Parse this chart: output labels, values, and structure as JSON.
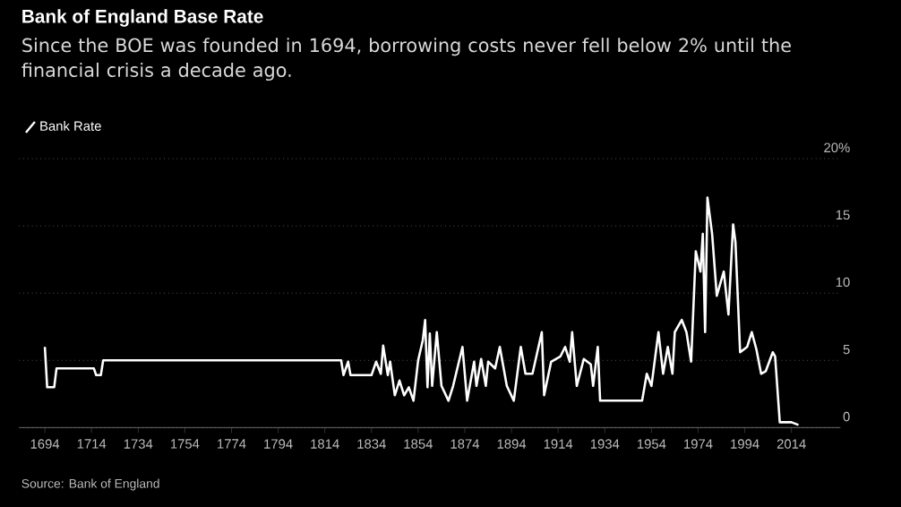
{
  "chart_data": {
    "type": "line",
    "title": "Bank of England Base Rate",
    "subtitle": "Since the BOE was founded in 1694, borrowing costs never fell below 2% until the financial crisis a decade ago.",
    "x": [
      1694,
      1695,
      1698,
      1699,
      1715,
      1716,
      1718,
      1719,
      1821,
      1822,
      1824,
      1825,
      1834,
      1836,
      1838,
      1839,
      1841,
      1842,
      1844,
      1846,
      1848,
      1850,
      1852,
      1854,
      1856,
      1857,
      1858,
      1859,
      1860,
      1862,
      1864,
      1867,
      1869,
      1873,
      1875,
      1878,
      1879,
      1881,
      1883,
      1884,
      1887,
      1889,
      1892,
      1895,
      1898,
      1900,
      1903,
      1907,
      1908,
      1911,
      1915,
      1917,
      1919,
      1920,
      1922,
      1925,
      1928,
      1929,
      1931,
      1932,
      1950,
      1952,
      1954,
      1957,
      1959,
      1961,
      1963,
      1964,
      1967,
      1969,
      1971,
      1973,
      1975,
      1976,
      1977,
      1978,
      1980,
      1982,
      1985,
      1987,
      1989,
      1990,
      1992,
      1995,
      1997,
      1999,
      2001,
      2003,
      2006,
      2007,
      2009,
      2014,
      2017
    ],
    "series": [
      {
        "name": "Bank Rate",
        "color": "#ffffff",
        "values": [
          6.0,
          3.0,
          3.0,
          4.4,
          4.4,
          3.9,
          3.9,
          5.0,
          5.0,
          3.9,
          4.9,
          3.9,
          3.9,
          4.9,
          4.0,
          6.1,
          3.9,
          4.9,
          2.4,
          3.5,
          2.4,
          3.0,
          2.0,
          5.0,
          6.5,
          8.0,
          3.0,
          7.0,
          3.1,
          7.1,
          3.1,
          2.0,
          3.1,
          6.0,
          2.0,
          4.9,
          3.1,
          5.1,
          3.1,
          4.9,
          4.4,
          6.0,
          3.1,
          2.0,
          6.0,
          4.0,
          4.0,
          7.1,
          2.4,
          4.9,
          5.3,
          6.0,
          4.9,
          7.1,
          3.1,
          5.1,
          4.7,
          3.1,
          6.0,
          2.0,
          2.0,
          4.0,
          3.1,
          7.1,
          4.0,
          6.0,
          4.0,
          7.1,
          8.0,
          7.1,
          4.9,
          13.1,
          11.6,
          14.4,
          7.1,
          17.1,
          14.4,
          9.8,
          11.6,
          8.4,
          15.1,
          13.8,
          5.6,
          6.0,
          7.1,
          5.8,
          4.0,
          4.2,
          5.6,
          5.3,
          0.4,
          0.4,
          0.2
        ]
      }
    ],
    "xlim": [
      1683,
      2035
    ],
    "xticks": [
      1694,
      1714,
      1734,
      1754,
      1774,
      1794,
      1814,
      1834,
      1854,
      1874,
      1894,
      1914,
      1934,
      1954,
      1974,
      1994,
      2014
    ],
    "ylim": [
      0,
      20
    ],
    "yticks": [
      0,
      5,
      10,
      15,
      {
        "value": 20,
        "label": "20%"
      }
    ],
    "grid": "y",
    "legend": "top left",
    "annotations": [
      "Source: Bank of England"
    ]
  }
}
